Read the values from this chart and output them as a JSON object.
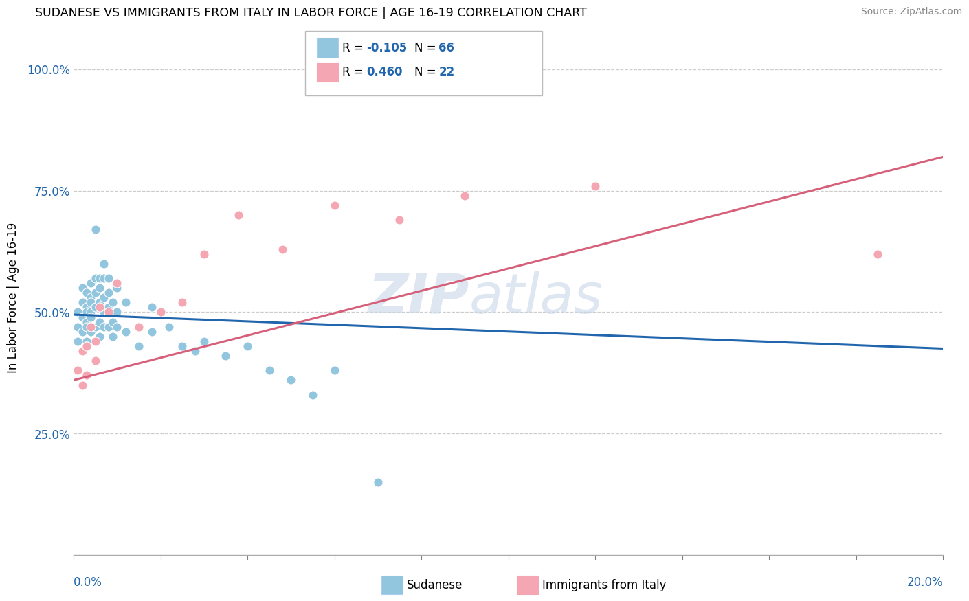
{
  "title": "SUDANESE VS IMMIGRANTS FROM ITALY IN LABOR FORCE | AGE 16-19 CORRELATION CHART",
  "source": "Source: ZipAtlas.com",
  "ylabel": "In Labor Force | Age 16-19",
  "xmin": 0.0,
  "xmax": 0.2,
  "ymin": 0.0,
  "ymax": 1.06,
  "blue_color": "#92c5de",
  "pink_color": "#f4a7b2",
  "blue_line_color": "#2166ac",
  "pink_line_color": "#d6607a",
  "blue_scatter_x": [
    0.001,
    0.001,
    0.001,
    0.002,
    0.002,
    0.002,
    0.002,
    0.002,
    0.003,
    0.003,
    0.003,
    0.003,
    0.003,
    0.003,
    0.003,
    0.004,
    0.004,
    0.004,
    0.004,
    0.004,
    0.004,
    0.005,
    0.005,
    0.005,
    0.005,
    0.005,
    0.005,
    0.006,
    0.006,
    0.006,
    0.006,
    0.006,
    0.007,
    0.007,
    0.007,
    0.007,
    0.007,
    0.008,
    0.008,
    0.008,
    0.008,
    0.009,
    0.009,
    0.009,
    0.01,
    0.01,
    0.01,
    0.012,
    0.012,
    0.015,
    0.015,
    0.018,
    0.018,
    0.02,
    0.022,
    0.025,
    0.028,
    0.03,
    0.035,
    0.04,
    0.045,
    0.05,
    0.055,
    0.06,
    0.07
  ],
  "blue_scatter_y": [
    0.47,
    0.5,
    0.44,
    0.49,
    0.52,
    0.46,
    0.55,
    0.42,
    0.48,
    0.51,
    0.54,
    0.44,
    0.47,
    0.5,
    0.43,
    0.5,
    0.53,
    0.56,
    0.46,
    0.49,
    0.52,
    0.67,
    0.57,
    0.51,
    0.54,
    0.47,
    0.44,
    0.55,
    0.52,
    0.48,
    0.45,
    0.57,
    0.6,
    0.57,
    0.53,
    0.5,
    0.47,
    0.54,
    0.51,
    0.57,
    0.47,
    0.52,
    0.48,
    0.45,
    0.55,
    0.5,
    0.47,
    0.52,
    0.46,
    0.47,
    0.43,
    0.51,
    0.46,
    0.5,
    0.47,
    0.43,
    0.42,
    0.44,
    0.41,
    0.43,
    0.38,
    0.36,
    0.33,
    0.38,
    0.15
  ],
  "pink_scatter_x": [
    0.001,
    0.002,
    0.002,
    0.003,
    0.003,
    0.004,
    0.005,
    0.005,
    0.006,
    0.008,
    0.01,
    0.015,
    0.02,
    0.025,
    0.03,
    0.038,
    0.048,
    0.06,
    0.075,
    0.09,
    0.12,
    0.185
  ],
  "pink_scatter_y": [
    0.38,
    0.35,
    0.42,
    0.37,
    0.43,
    0.47,
    0.4,
    0.44,
    0.51,
    0.5,
    0.56,
    0.47,
    0.5,
    0.52,
    0.62,
    0.7,
    0.63,
    0.72,
    0.69,
    0.74,
    0.76,
    0.62
  ],
  "blue_line_x0": 0.0,
  "blue_line_y0": 0.495,
  "blue_line_x1": 0.2,
  "blue_line_y1": 0.425,
  "pink_line_x0": 0.0,
  "pink_line_y0": 0.36,
  "pink_line_x1": 0.2,
  "pink_line_y1": 0.82
}
